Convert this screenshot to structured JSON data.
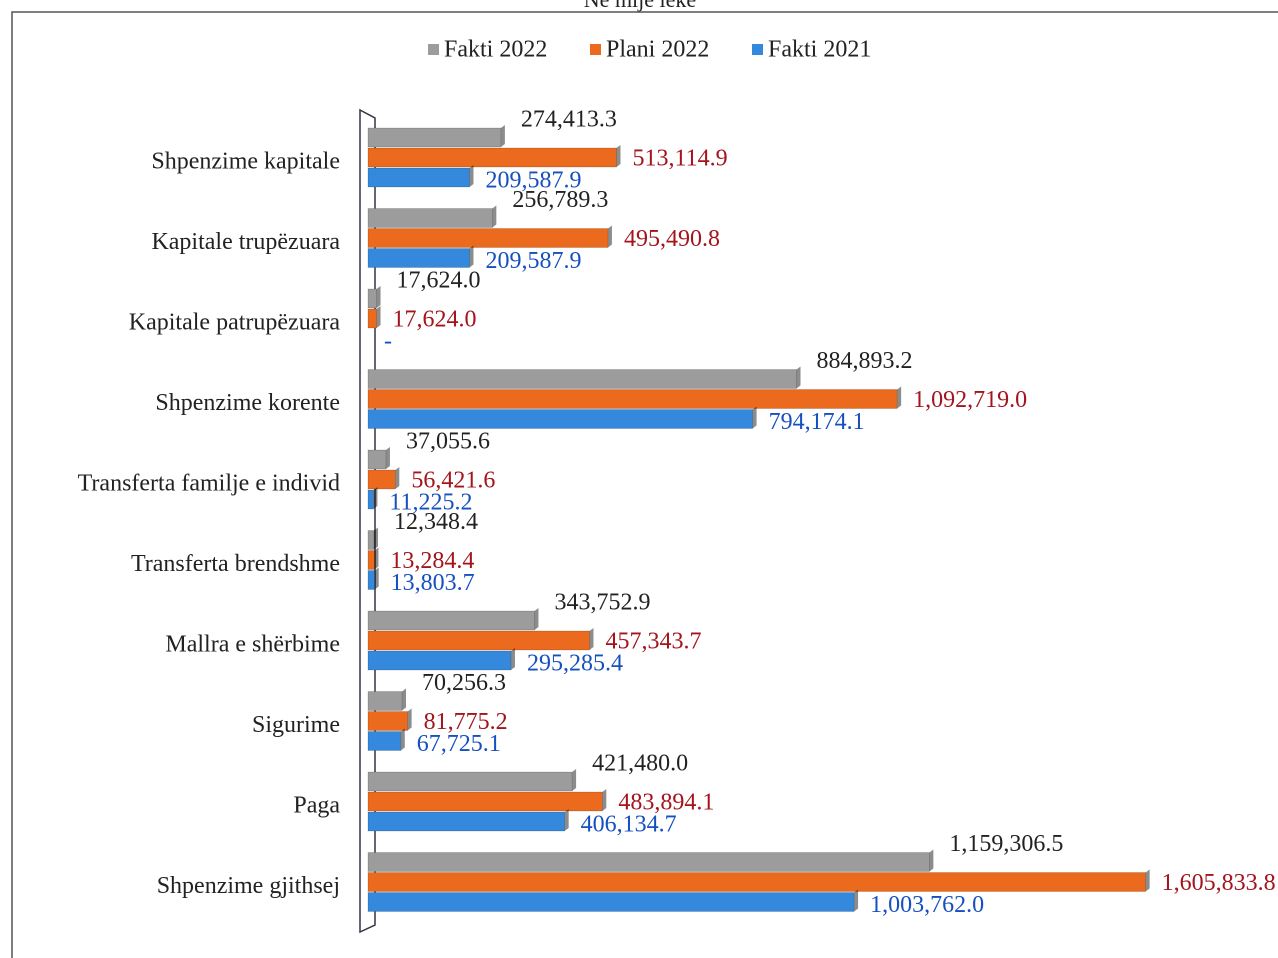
{
  "chart_data": {
    "type": "bar",
    "orientation": "horizontal",
    "subtitle": "Në mijë lekë",
    "categories": [
      "Shpenzime kapitale",
      "Kapitale trupëzuara",
      "Kapitale patrupëzuara",
      "Shpenzime korente",
      "Transferta familje e individ",
      "Transferta brendshme",
      "Mallra e shërbime",
      "Sigurime",
      "Paga",
      "Shpenzime gjithsej"
    ],
    "series": [
      {
        "name": "Fakti 2022",
        "color": "#9c9c9c",
        "label_color": "#222222",
        "values": [
          274413.3,
          256789.3,
          17624.0,
          884893.2,
          37055.6,
          12348.4,
          343752.9,
          70256.3,
          421480.0,
          1159306.5
        ],
        "value_labels": [
          "274,413.3",
          "256,789.3",
          "17,624.0",
          "884,893.2",
          "37,055.6",
          "12,348.4",
          "343,752.9",
          "70,256.3",
          "421,480.0",
          "1,159,306.5"
        ]
      },
      {
        "name": "Plani 2022",
        "color": "#ec6a1e",
        "label_color": "#a3141c",
        "values": [
          513114.9,
          495490.8,
          17624.0,
          1092719.0,
          56421.6,
          13284.4,
          457343.7,
          81775.2,
          483894.1,
          1605833.8
        ],
        "value_labels": [
          "513,114.9",
          "495,490.8",
          "17,624.0",
          "1,092,719.0",
          "56,421.6",
          "13,284.4",
          "457,343.7",
          "81,775.2",
          "483,894.1",
          "1,605,833.8"
        ]
      },
      {
        "name": "Fakti 2021",
        "color": "#3589dc",
        "label_color": "#1650c0",
        "values": [
          209587.9,
          209587.9,
          0,
          794174.1,
          11225.2,
          13803.7,
          295285.4,
          67725.1,
          406134.7,
          1003762.0
        ],
        "value_labels": [
          "209,587.9",
          "209,587.9",
          "-",
          "794,174.1",
          "11,225.2",
          "13,803.7",
          "295,285.4",
          "67,725.1",
          "406,134.7",
          "1,003,762.0"
        ]
      }
    ],
    "xlim": [
      0,
      1650000
    ],
    "legend": "top"
  }
}
